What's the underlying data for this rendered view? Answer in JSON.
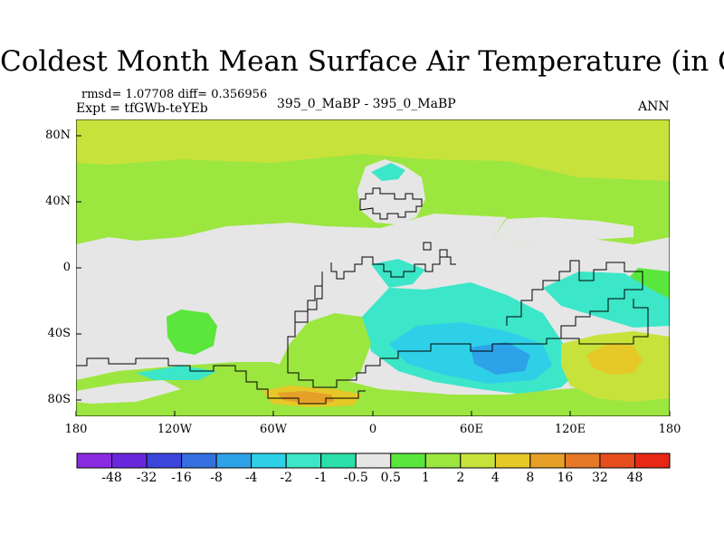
{
  "title": "Coldest Month Mean Surface Air Temperature (in C)",
  "stats_line": "rmsd= 1.07708 diff= 0.356956",
  "expt_line": "Expt = tfGWb-teYEb",
  "center_label": "395_0_MaBP - 395_0_MaBP",
  "period_label": "ANN",
  "y_axis": {
    "ticks": [
      "80N",
      "40N",
      "0",
      "40S",
      "80S"
    ]
  },
  "x_axis": {
    "ticks": [
      "180",
      "120W",
      "60W",
      "0",
      "60E",
      "120E",
      "180"
    ]
  },
  "colorbar": {
    "labels": [
      "-48",
      "-32",
      "-16",
      "-8",
      "-4",
      "-2",
      "-1",
      "-0.5",
      "0.5",
      "1",
      "2",
      "4",
      "8",
      "16",
      "32",
      "48"
    ],
    "colors": [
      "#8a2be2",
      "#6a28dc",
      "#3c46dc",
      "#3470e0",
      "#2ea2e8",
      "#2ed0e8",
      "#3ce6c8",
      "#2ae0a8",
      "#e6e6e6",
      "#5ae63c",
      "#9ce640",
      "#c8e23c",
      "#e6c828",
      "#e6a028",
      "#e67828",
      "#e64e1e",
      "#e62814"
    ]
  },
  "map_colors": {
    "neutral": "#e6e6e6",
    "pos1": "#9ce640",
    "pos2": "#c8e23c",
    "pos3": "#e6c828",
    "pos4": "#e6a028",
    "neg1": "#3ce6c8",
    "neg2": "#2ed0e8",
    "neg3": "#2ea2e8",
    "green": "#5ae63c",
    "coast": "#000000"
  }
}
